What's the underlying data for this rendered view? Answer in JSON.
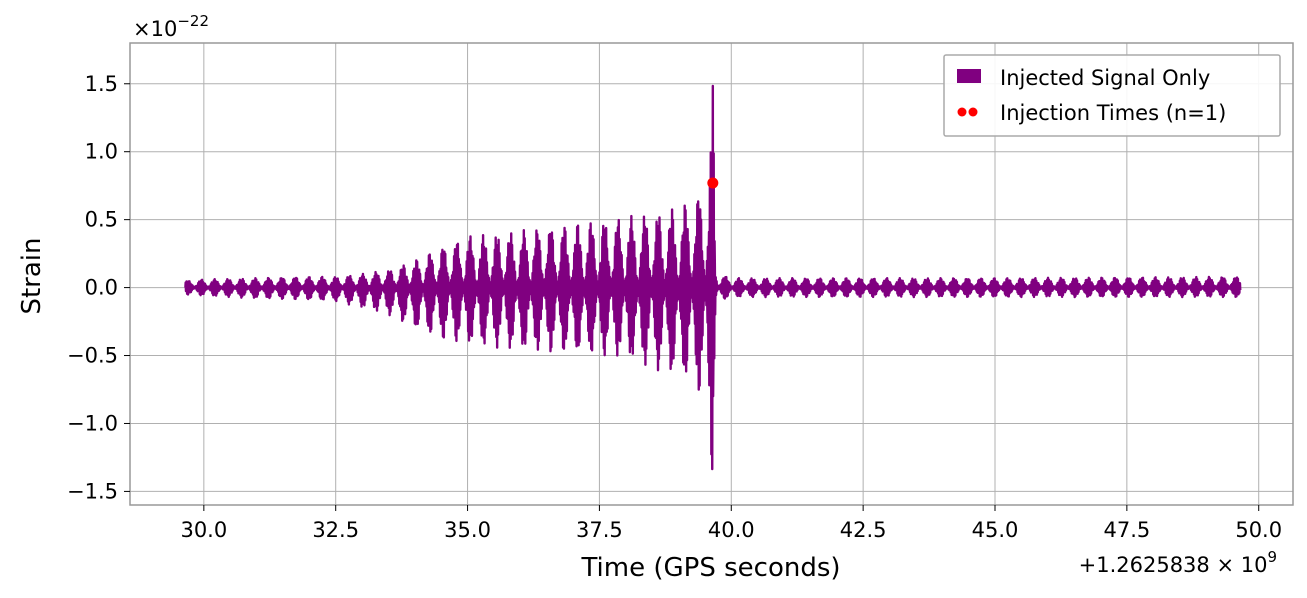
{
  "chart_data": {
    "type": "line",
    "xlabel": "Time (GPS seconds)",
    "ylabel": "Strain",
    "x_offset_label": "+1.2625838 × 10",
    "x_offset_exp": "9",
    "y_scale_label": "×10",
    "y_scale_exp": "−22",
    "xlim": [
      28.6,
      50.65
    ],
    "ylim": [
      -1.6,
      1.8
    ],
    "xticks": [
      30.0,
      32.5,
      35.0,
      37.5,
      40.0,
      42.5,
      45.0,
      47.5,
      50.0
    ],
    "xtick_labels": [
      "30.0",
      "32.5",
      "35.0",
      "37.5",
      "40.0",
      "42.5",
      "45.0",
      "47.5",
      "50.0"
    ],
    "yticks": [
      -1.5,
      -1.0,
      -0.5,
      0.0,
      0.5,
      1.0,
      1.5
    ],
    "ytick_labels": [
      "−1.5",
      "−1.0",
      "−0.5",
      "0.0",
      "0.5",
      "1.0",
      "1.5"
    ],
    "grid": true,
    "legend_position": "top-right",
    "series": [
      {
        "name": "Injected Signal Only",
        "color": "#800080",
        "style": "line",
        "x_range": [
          29.65,
          49.65
        ],
        "envelope": {
          "x": [
            29.65,
            30.0,
            31.0,
            32.0,
            32.5,
            33.0,
            33.5,
            34.0,
            34.5,
            35.0,
            35.5,
            36.0,
            36.5,
            37.0,
            37.5,
            38.0,
            38.5,
            39.0,
            39.3,
            39.5,
            39.6,
            39.65,
            39.7,
            39.75,
            40.0,
            45.0,
            49.65
          ],
          "upper": [
            0.05,
            0.06,
            0.07,
            0.08,
            0.08,
            0.1,
            0.13,
            0.2,
            0.3,
            0.38,
            0.4,
            0.42,
            0.45,
            0.47,
            0.5,
            0.52,
            0.55,
            0.6,
            0.65,
            0.75,
            1.0,
            1.65,
            0.2,
            0.1,
            0.07,
            0.07,
            0.08
          ],
          "lower": [
            -0.05,
            -0.06,
            -0.08,
            -0.09,
            -0.1,
            -0.15,
            -0.2,
            -0.3,
            -0.38,
            -0.42,
            -0.44,
            -0.46,
            -0.48,
            -0.48,
            -0.5,
            -0.52,
            -0.6,
            -0.65,
            -0.7,
            -0.9,
            -1.2,
            -1.45,
            -0.2,
            -0.1,
            -0.07,
            -0.07,
            -0.07
          ]
        }
      },
      {
        "name": "Injection Times (n=1)",
        "color": "#ff0000",
        "style": "scatter",
        "x": [
          39.65
        ],
        "y": [
          0.77
        ]
      }
    ]
  }
}
